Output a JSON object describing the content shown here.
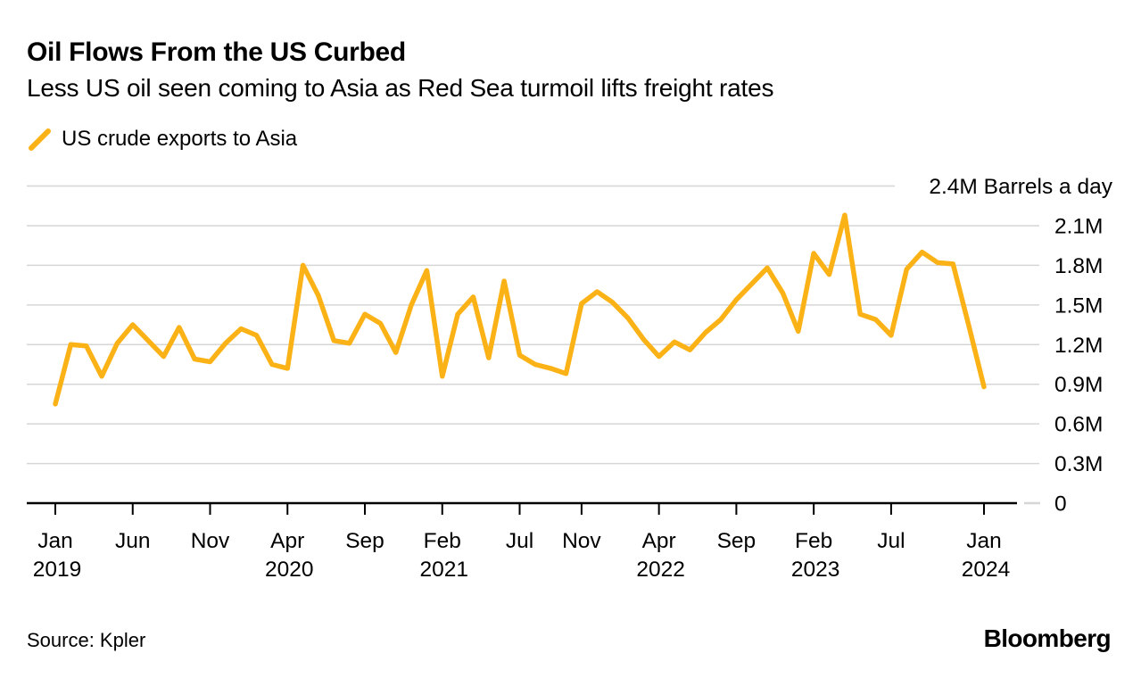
{
  "header": {
    "title": "Oil Flows From the US Curbed",
    "subtitle": "Less US oil seen coming to Asia as Red Sea turmoil lifts freight rates"
  },
  "legend": {
    "label": "US crude exports to Asia"
  },
  "footer": {
    "source": "Source: Kpler",
    "brand": "Bloomberg"
  },
  "colors": {
    "series": "#FBB216",
    "gridline": "#d6d6d6",
    "axis": "#000000",
    "text": "#000000",
    "background": "#ffffff"
  },
  "chart_data": {
    "type": "line",
    "title": "Oil Flows From the US Curbed",
    "subtitle": "Less US oil seen coming to Asia as Red Sea turmoil lifts freight rates",
    "series_name": "US crude exports to Asia",
    "unit": "Barrels a day (millions)",
    "ylim": [
      0,
      2.4
    ],
    "grid": true,
    "legend_position": "top-left",
    "x": [
      "2019-01",
      "2019-02",
      "2019-03",
      "2019-04",
      "2019-05",
      "2019-06",
      "2019-07",
      "2019-08",
      "2019-09",
      "2019-10",
      "2019-11",
      "2019-12",
      "2020-01",
      "2020-02",
      "2020-03",
      "2020-04",
      "2020-05",
      "2020-06",
      "2020-07",
      "2020-08",
      "2020-09",
      "2020-10",
      "2020-11",
      "2020-12",
      "2021-01",
      "2021-02",
      "2021-03",
      "2021-04",
      "2021-05",
      "2021-06",
      "2021-07",
      "2021-08",
      "2021-09",
      "2021-10",
      "2021-11",
      "2021-12",
      "2022-01",
      "2022-02",
      "2022-03",
      "2022-04",
      "2022-05",
      "2022-06",
      "2022-07",
      "2022-08",
      "2022-09",
      "2022-10",
      "2022-11",
      "2022-12",
      "2023-01",
      "2023-02",
      "2023-03",
      "2023-04",
      "2023-05",
      "2023-06",
      "2023-07",
      "2023-08",
      "2023-09",
      "2023-10",
      "2023-11",
      "2023-12",
      "2024-01"
    ],
    "values": [
      0.75,
      1.2,
      1.19,
      0.96,
      1.21,
      1.35,
      1.23,
      1.11,
      1.33,
      1.09,
      1.07,
      1.21,
      1.32,
      1.27,
      1.05,
      1.02,
      1.8,
      1.57,
      1.23,
      1.21,
      1.43,
      1.36,
      1.14,
      1.5,
      1.76,
      0.96,
      1.43,
      1.56,
      1.1,
      1.68,
      1.12,
      1.05,
      1.02,
      0.98,
      1.51,
      1.6,
      1.52,
      1.4,
      1.24,
      1.11,
      1.22,
      1.16,
      1.29,
      1.39,
      1.54,
      1.66,
      1.78,
      1.59,
      1.3,
      1.89,
      1.73,
      2.18,
      1.43,
      1.39,
      1.27,
      1.77,
      1.9,
      1.82,
      1.81,
      1.35,
      0.88
    ],
    "y_axis": {
      "ticks": [
        {
          "value": 0,
          "label": "0"
        },
        {
          "value": 0.3,
          "label": "0.3M"
        },
        {
          "value": 0.6,
          "label": "0.6M"
        },
        {
          "value": 0.9,
          "label": "0.9M"
        },
        {
          "value": 1.2,
          "label": "1.2M"
        },
        {
          "value": 1.5,
          "label": "1.5M"
        },
        {
          "value": 1.8,
          "label": "1.8M"
        },
        {
          "value": 2.1,
          "label": "2.1M"
        }
      ],
      "top_tick": {
        "value": 2.4,
        "label": "2.4M Barrels a day"
      }
    },
    "x_axis": {
      "ticks": [
        {
          "month_index": 0,
          "line1": "Jan",
          "line2": "2019"
        },
        {
          "month_index": 5,
          "line1": "Jun",
          "line2": ""
        },
        {
          "month_index": 10,
          "line1": "Nov",
          "line2": ""
        },
        {
          "month_index": 15,
          "line1": "Apr",
          "line2": "2020"
        },
        {
          "month_index": 20,
          "line1": "Sep",
          "line2": ""
        },
        {
          "month_index": 25,
          "line1": "Feb",
          "line2": "2021"
        },
        {
          "month_index": 30,
          "line1": "Jul",
          "line2": ""
        },
        {
          "month_index": 34,
          "line1": "Nov",
          "line2": ""
        },
        {
          "month_index": 39,
          "line1": "Apr",
          "line2": "2022"
        },
        {
          "month_index": 44,
          "line1": "Sep",
          "line2": ""
        },
        {
          "month_index": 49,
          "line1": "Feb",
          "line2": "2023"
        },
        {
          "month_index": 54,
          "line1": "Jul",
          "line2": ""
        },
        {
          "month_index": 60,
          "line1": "Jan",
          "line2": "2024"
        }
      ]
    }
  }
}
